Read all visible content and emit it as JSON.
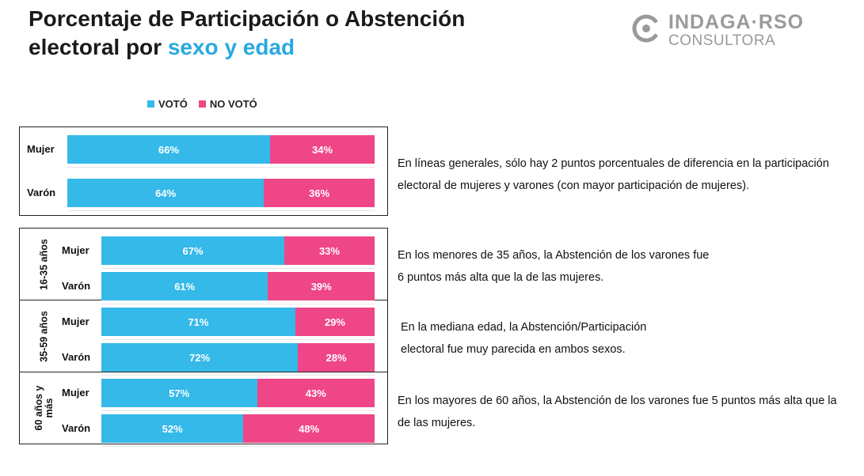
{
  "title": {
    "line1": "Porcentaje de Participación o Abstención",
    "line2_prefix": "electoral por ",
    "line2_accent": "sexo y edad"
  },
  "logo": {
    "main": "INDAGA·RSO",
    "sub": "CONSULTORA"
  },
  "colors": {
    "voto": "#35b9e9",
    "no_voto": "#ef4687",
    "accent": "#29a9e0"
  },
  "chart_data": {
    "type": "bar",
    "orientation": "horizontal",
    "stacked": true,
    "legend_position": "top-left",
    "series": [
      {
        "name": "VOTÓ",
        "values": [
          66,
          64,
          67,
          61,
          71,
          72,
          57,
          52
        ]
      },
      {
        "name": "NO VOTÓ",
        "values": [
          34,
          36,
          33,
          39,
          29,
          28,
          43,
          48
        ]
      }
    ],
    "groups": [
      {
        "label": "",
        "rows": [
          {
            "label": "Mujer",
            "voto": 66,
            "no_voto": 34,
            "voto_text": "66%",
            "no_voto_text": "34%"
          },
          {
            "label": "Varón",
            "voto": 64,
            "no_voto": 36,
            "voto_text": "64%",
            "no_voto_text": "36%"
          }
        ]
      },
      {
        "label": "16-35 años",
        "rows": [
          {
            "label": "Mujer",
            "voto": 67,
            "no_voto": 33,
            "voto_text": "67%",
            "no_voto_text": "33%"
          },
          {
            "label": "Varón",
            "voto": 61,
            "no_voto": 39,
            "voto_text": "61%",
            "no_voto_text": "39%"
          }
        ]
      },
      {
        "label": "35-59 años",
        "rows": [
          {
            "label": "Mujer",
            "voto": 71,
            "no_voto": 29,
            "voto_text": "71%",
            "no_voto_text": "29%"
          },
          {
            "label": "Varón",
            "voto": 72,
            "no_voto": 28,
            "voto_text": "72%",
            "no_voto_text": "28%"
          }
        ]
      },
      {
        "label": "60 años y\nmás",
        "rows": [
          {
            "label": "Mujer",
            "voto": 57,
            "no_voto": 43,
            "voto_text": "57%",
            "no_voto_text": "43%"
          },
          {
            "label": "Varón",
            "voto": 52,
            "no_voto": 48,
            "voto_text": "52%",
            "no_voto_text": "48%"
          }
        ]
      }
    ]
  },
  "notes": [
    "En líneas generales, sólo hay 2 puntos porcentuales de diferencia en la participación electoral de mujeres y varones (con mayor participación de mujeres).",
    "En los menores de 35 años, la Abstención de los varones fue 6 puntos más alta que la de las mujeres.",
    "En la mediana edad, la Abstención/Participación electoral fue muy parecida en ambos sexos.",
    "En los mayores de 60 años, la Abstención de los varones fue 5 puntos más alta que la de las mujeres."
  ]
}
